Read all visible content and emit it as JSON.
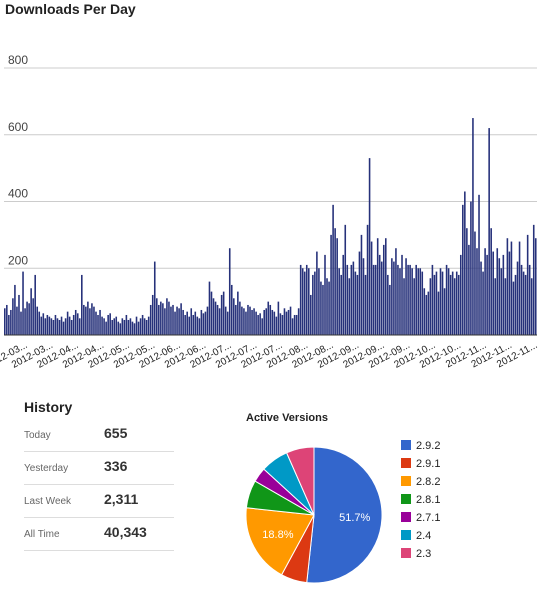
{
  "downloads": {
    "title": "Downloads Per Day"
  },
  "history": {
    "title": "History",
    "rows": [
      {
        "label": "Today",
        "value": "655"
      },
      {
        "label": "Yesterday",
        "value": "336"
      },
      {
        "label": "Last Week",
        "value": "2,311"
      },
      {
        "label": "All Time",
        "value": "40,343"
      }
    ]
  },
  "versions": {
    "title": "Active Versions"
  },
  "chart_data": [
    {
      "type": "bar",
      "title": "Downloads Per Day",
      "xlabel": "",
      "ylabel": "",
      "ylim": [
        0,
        800
      ],
      "yticks": [
        200,
        400,
        600,
        800
      ],
      "grid": true,
      "bar_color": "#26317a",
      "xtick_labels": [
        "12-03...",
        "2012-03...",
        "2012-04...",
        "2012-04...",
        "2012-05...",
        "2012-05...",
        "2012-06...",
        "2012-06...",
        "2012-07...",
        "2012-07...",
        "2012-07...",
        "2012-08...",
        "2012-08...",
        "2012-09...",
        "2012-09...",
        "2012-09...",
        "2012-10...",
        "2012-10...",
        "2012-11...",
        "2012-11...",
        "2012-11..."
      ],
      "values": [
        80,
        90,
        60,
        75,
        110,
        150,
        85,
        120,
        70,
        190,
        80,
        100,
        95,
        140,
        110,
        180,
        85,
        70,
        55,
        65,
        50,
        60,
        55,
        50,
        45,
        60,
        50,
        45,
        55,
        40,
        50,
        70,
        55,
        45,
        60,
        75,
        65,
        50,
        180,
        90,
        85,
        100,
        80,
        95,
        85,
        70,
        60,
        75,
        55,
        50,
        40,
        60,
        65,
        45,
        50,
        55,
        40,
        35,
        50,
        45,
        60,
        45,
        50,
        40,
        35,
        55,
        40,
        50,
        60,
        50,
        45,
        55,
        90,
        120,
        220,
        110,
        90,
        100,
        95,
        80,
        110,
        100,
        85,
        90,
        70,
        85,
        80,
        95,
        75,
        60,
        70,
        55,
        80,
        60,
        70,
        55,
        50,
        75,
        65,
        70,
        85,
        160,
        130,
        110,
        100,
        90,
        80,
        120,
        130,
        85,
        70,
        260,
        150,
        110,
        90,
        130,
        100,
        85,
        80,
        70,
        90,
        85,
        75,
        80,
        70,
        60,
        65,
        50,
        75,
        80,
        100,
        90,
        75,
        70,
        55,
        100,
        65,
        60,
        80,
        70,
        75,
        85,
        50,
        60,
        60,
        80,
        210,
        200,
        190,
        210,
        200,
        120,
        180,
        190,
        250,
        200,
        160,
        150,
        240,
        170,
        160,
        300,
        390,
        320,
        290,
        200,
        180,
        240,
        330,
        210,
        170,
        210,
        220,
        190,
        180,
        250,
        300,
        230,
        180,
        330,
        530,
        280,
        210,
        210,
        290,
        240,
        220,
        270,
        290,
        180,
        150,
        230,
        220,
        260,
        210,
        200,
        240,
        170,
        230,
        210,
        210,
        200,
        170,
        210,
        200,
        200,
        190,
        140,
        120,
        130,
        170,
        210,
        180,
        190,
        130,
        200,
        190,
        140,
        210,
        200,
        180,
        190,
        170,
        190,
        180,
        240,
        390,
        430,
        320,
        270,
        400,
        650,
        310,
        260,
        420,
        220,
        190,
        260,
        240,
        620,
        320,
        250,
        170,
        260,
        230,
        200,
        240,
        170,
        290,
        250,
        280,
        160,
        180,
        220,
        280,
        210,
        190,
        180,
        300,
        210,
        170,
        330,
        290
      ]
    },
    {
      "type": "pie",
      "title": "Active Versions",
      "slices": [
        {
          "label": "2.9.2",
          "value": 51.7,
          "color": "#3366cc",
          "shown_label": "51.7%"
        },
        {
          "label": "2.9.1",
          "value": 6.2,
          "color": "#dc3912",
          "shown_label": ""
        },
        {
          "label": "2.8.2",
          "value": 18.8,
          "color": "#ff9900",
          "shown_label": "18.8%"
        },
        {
          "label": "2.8.1",
          "value": 6.6,
          "color": "#109618",
          "shown_label": ""
        },
        {
          "label": "2.7.1",
          "value": 3.5,
          "color": "#990099",
          "shown_label": ""
        },
        {
          "label": "2.4",
          "value": 6.6,
          "color": "#0099c6",
          "shown_label": ""
        },
        {
          "label": "2.3",
          "value": 6.6,
          "color": "#dd4477",
          "shown_label": ""
        }
      ]
    }
  ]
}
